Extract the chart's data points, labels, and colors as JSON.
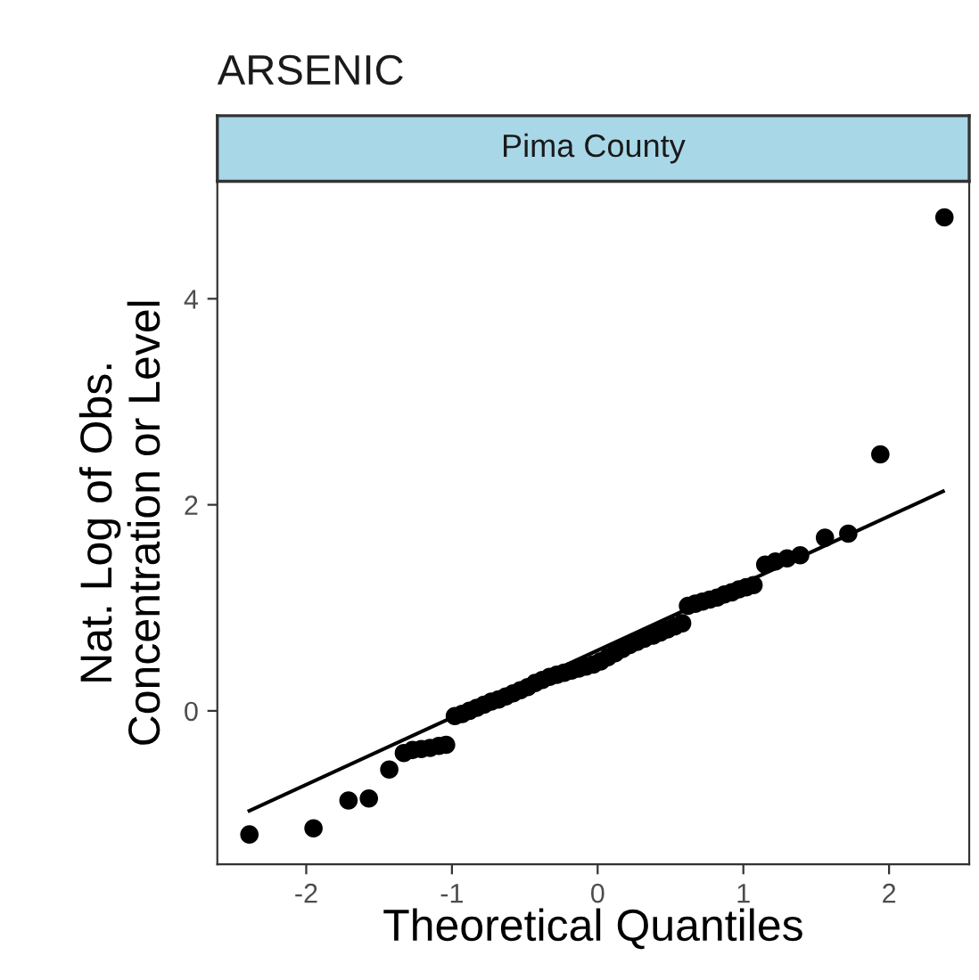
{
  "chart_data": {
    "type": "scatter",
    "title": "ARSENIC",
    "subtitle": "Pima County",
    "xlabel": "Theoretical Quantiles",
    "ylabel": "Nat. Log of Obs.\nConcentration or Level",
    "xlim": [
      -2.61,
      2.55
    ],
    "ylim": [
      -1.49,
      5.14
    ],
    "xticks": [
      -2,
      -1,
      0,
      1,
      2
    ],
    "yticks": [
      0,
      2,
      4
    ],
    "grid": false,
    "series": [
      {
        "marker": "circle",
        "color": "#000000",
        "x": [
          -2.39,
          -1.95,
          -1.71,
          -1.57,
          -1.43,
          -1.33,
          -1.27,
          -1.21,
          -1.15,
          -1.09,
          -1.04,
          -0.98,
          -0.93,
          -0.88,
          -0.83,
          -0.78,
          -0.73,
          -0.68,
          -0.63,
          -0.58,
          -0.53,
          -0.48,
          -0.43,
          -0.38,
          -0.33,
          -0.28,
          -0.23,
          -0.18,
          -0.13,
          -0.08,
          -0.03,
          0.02,
          0.07,
          0.12,
          0.17,
          0.22,
          0.27,
          0.32,
          0.38,
          0.43,
          0.48,
          0.53,
          0.58,
          0.62,
          0.67,
          0.72,
          0.77,
          0.82,
          0.87,
          0.92,
          0.97,
          1.02,
          1.07,
          1.15,
          1.22,
          1.3,
          1.39,
          1.56,
          1.72,
          1.94,
          2.38
        ],
        "values": [
          -1.2,
          -1.14,
          -0.87,
          -0.85,
          -0.57,
          -0.41,
          -0.38,
          -0.37,
          -0.36,
          -0.34,
          -0.33,
          -0.05,
          -0.03,
          0.0,
          0.03,
          0.06,
          0.09,
          0.11,
          0.14,
          0.17,
          0.2,
          0.23,
          0.27,
          0.3,
          0.33,
          0.35,
          0.37,
          0.39,
          0.41,
          0.43,
          0.45,
          0.48,
          0.52,
          0.56,
          0.6,
          0.64,
          0.67,
          0.7,
          0.73,
          0.76,
          0.79,
          0.82,
          0.85,
          1.02,
          1.04,
          1.06,
          1.08,
          1.1,
          1.13,
          1.15,
          1.18,
          1.2,
          1.22,
          1.42,
          1.45,
          1.48,
          1.51,
          1.68,
          1.72,
          2.49,
          4.79
        ]
      },
      {
        "type": "line",
        "color": "#000000",
        "x": [
          -2.39,
          2.37
        ],
        "values": [
          -0.97,
          2.13
        ]
      }
    ]
  }
}
